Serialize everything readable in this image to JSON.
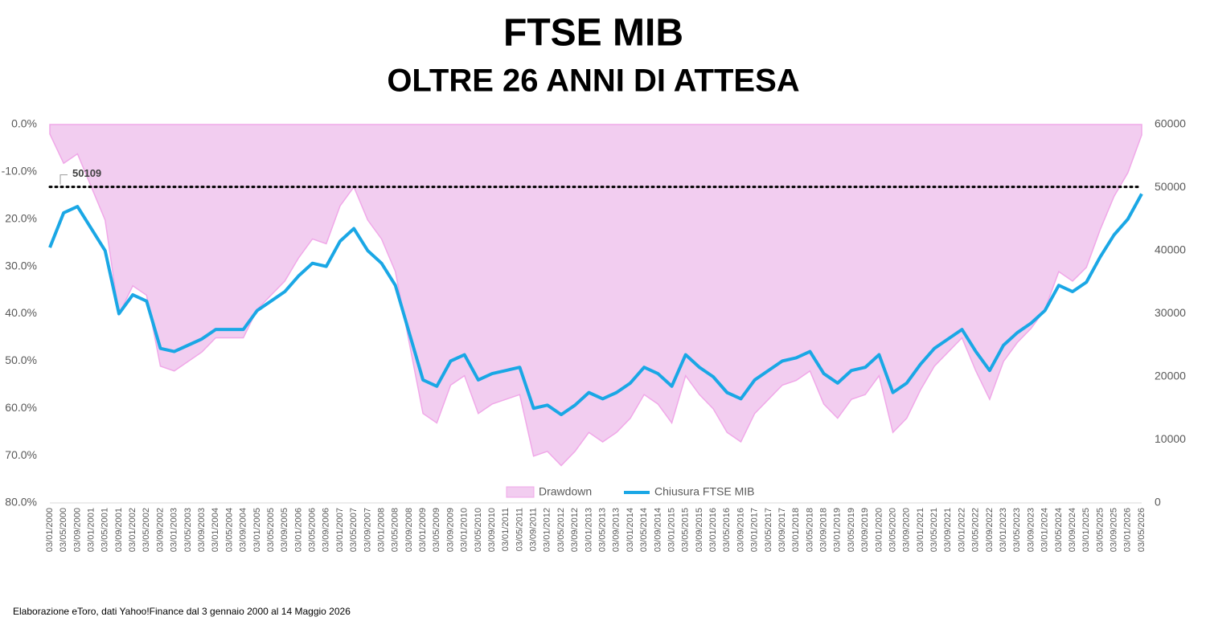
{
  "chart_data": {
    "type": "area-line",
    "title": "FTSE MIB",
    "subtitle": "OLTRE 26 ANNI DI ATTESA",
    "source": "Elaborazione eToro, dati Yahoo!Finance dal 3 gennaio 2000 al 14 Maggio 2026",
    "categories": [
      "03/01/2000",
      "03/05/2000",
      "03/09/2000",
      "03/01/2001",
      "03/05/2001",
      "03/09/2001",
      "03/01/2002",
      "03/05/2002",
      "03/09/2002",
      "03/01/2003",
      "03/05/2003",
      "03/09/2003",
      "03/01/2004",
      "03/05/2004",
      "03/09/2004",
      "03/01/2005",
      "03/05/2005",
      "03/09/2005",
      "03/01/2006",
      "03/05/2006",
      "03/09/2006",
      "03/01/2007",
      "03/05/2007",
      "03/09/2007",
      "03/01/2008",
      "03/05/2008",
      "03/09/2008",
      "03/01/2009",
      "03/05/2009",
      "03/09/2009",
      "03/01/2010",
      "03/05/2010",
      "03/09/2010",
      "03/01/2011",
      "03/05/2011",
      "03/09/2011",
      "03/01/2012",
      "03/05/2012",
      "03/09/2012",
      "03/01/2013",
      "03/05/2013",
      "03/09/2013",
      "03/01/2014",
      "03/05/2014",
      "03/09/2014",
      "03/01/2015",
      "03/05/2015",
      "03/09/2015",
      "03/01/2016",
      "03/05/2016",
      "03/09/2016",
      "03/01/2017",
      "03/05/2017",
      "03/09/2017",
      "03/01/2018",
      "03/05/2018",
      "03/09/2018",
      "03/01/2019",
      "03/05/2019",
      "03/09/2019",
      "03/01/2020",
      "03/05/2020",
      "03/09/2020",
      "03/01/2021",
      "03/05/2021",
      "03/09/2021",
      "03/01/2022",
      "03/05/2022",
      "03/09/2022",
      "03/01/2023",
      "03/05/2023",
      "03/09/2023",
      "03/01/2024",
      "03/05/2024",
      "03/09/2024",
      "03/01/2025",
      "03/05/2025",
      "03/09/2025",
      "03/01/2026",
      "03/05/2026"
    ],
    "series": [
      {
        "name": "Drawdown",
        "color": "#f2cdf0",
        "stroke": "#f0a8e8",
        "axis": "y",
        "values": [
          -2.0,
          -8.2,
          -6.2,
          -13.2,
          -20.2,
          -40.1,
          -34.1,
          -36.1,
          -51.1,
          -52.1,
          -50.1,
          -48.1,
          -45.1,
          -45.1,
          -45.1,
          -39.1,
          -36.1,
          -33.1,
          -28.2,
          -24.2,
          -25.2,
          -17.2,
          -13.2,
          -20.2,
          -24.2,
          -31.1,
          -46.1,
          -61.1,
          -63.1,
          -55.1,
          -53.1,
          -61.1,
          -59.1,
          -58.1,
          -57.1,
          -70.1,
          -69.1,
          -72.1,
          -69.1,
          -65.1,
          -67.1,
          -65.1,
          -62.1,
          -57.1,
          -59.1,
          -63.1,
          -53.1,
          -57.1,
          -60.1,
          -65.1,
          -67.1,
          -61.1,
          -58.1,
          -55.1,
          -54.1,
          -52.1,
          -59.1,
          -62.1,
          -58.1,
          -57.1,
          -53.1,
          -65.1,
          -62.1,
          -56.1,
          -51.1,
          -48.1,
          -45.1,
          -52.1,
          -58.1,
          -50.1,
          -46.1,
          -43.1,
          -39.1,
          -31.1,
          -33.1,
          -30.2,
          -22.2,
          -15.2,
          -10.2,
          -2.2
        ]
      },
      {
        "name": "Chiusura FTSE MIB",
        "color": "#1aa7e5",
        "axis": "y2",
        "values": [
          40500,
          46000,
          47000,
          43500,
          40000,
          30000,
          33000,
          32000,
          24500,
          24000,
          25000,
          26000,
          27500,
          27500,
          27500,
          30500,
          32000,
          33500,
          36000,
          38000,
          37500,
          41500,
          43500,
          40000,
          38000,
          34500,
          27000,
          19500,
          18500,
          22500,
          23500,
          19500,
          20500,
          21000,
          21500,
          15000,
          15500,
          14000,
          15500,
          17500,
          16500,
          17500,
          19000,
          21500,
          20500,
          18500,
          23500,
          21500,
          20000,
          17500,
          16500,
          19500,
          21000,
          22500,
          23000,
          24000,
          20500,
          19000,
          21000,
          21500,
          23500,
          17500,
          19000,
          22000,
          24500,
          26000,
          27500,
          24000,
          21000,
          25000,
          27000,
          28500,
          30500,
          34500,
          33500,
          35000,
          39000,
          42500,
          45000,
          49000
        ]
      }
    ],
    "peak_line": 50109,
    "ylim": [
      -80,
      0
    ],
    "yticks": [
      {
        "value": 0,
        "label": "0.0%"
      },
      {
        "value": -10,
        "label": "-10.0%"
      },
      {
        "value": -20,
        "label": "20.0%"
      },
      {
        "value": -30,
        "label": "30.0%"
      },
      {
        "value": -40,
        "label": "40.0%"
      },
      {
        "value": -50,
        "label": "50.0%"
      },
      {
        "value": -60,
        "label": "60.0%"
      },
      {
        "value": -70,
        "label": "70.0%"
      },
      {
        "value": -80,
        "label": "80.0%"
      }
    ],
    "y2lim": [
      0,
      60000
    ],
    "y2ticks": [
      0,
      10000,
      20000,
      30000,
      40000,
      50000,
      60000
    ],
    "legend": "bottom"
  }
}
